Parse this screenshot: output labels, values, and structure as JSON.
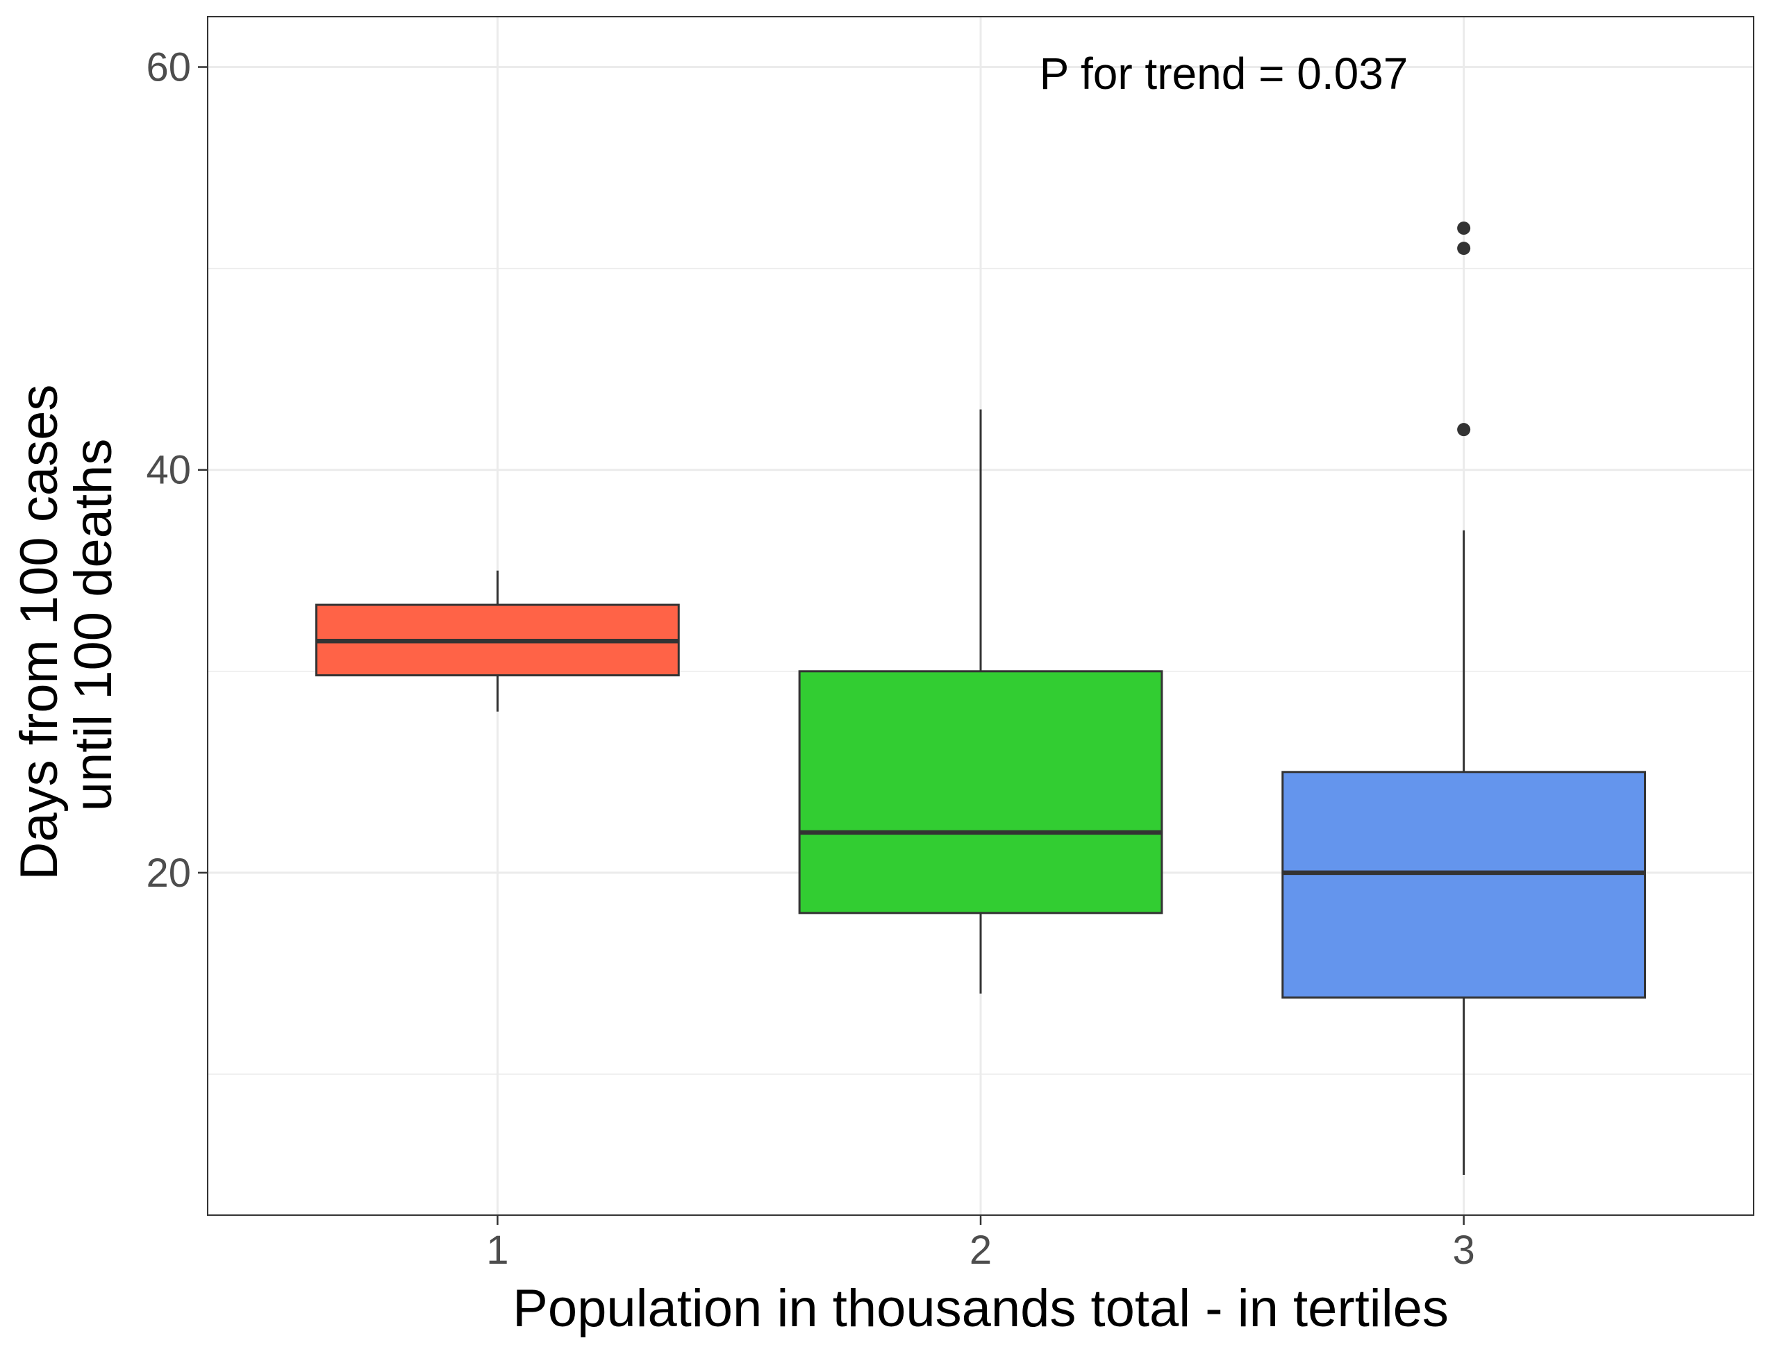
{
  "chart_data": {
    "type": "box",
    "xlabel": "Population in thousands total - in tertiles",
    "ylabel_lines": [
      "Days from 100 cases",
      "until 100 deaths"
    ],
    "annotation": "P for trend = 0.037",
    "categories": [
      "1",
      "2",
      "3"
    ],
    "ylim": [
      3,
      62.5
    ],
    "y_ticks": [
      20,
      40,
      60
    ],
    "y_minor_ticks": [
      10,
      30,
      50
    ],
    "grid": true,
    "boxes": [
      {
        "category": "1",
        "whisker_low": 28,
        "q1": 29.8,
        "median": 31.5,
        "q3": 33.3,
        "whisker_high": 35,
        "outliers": [],
        "color": "#FF6347"
      },
      {
        "category": "2",
        "whisker_low": 14,
        "q1": 18,
        "median": 22,
        "q3": 30,
        "whisker_high": 43,
        "outliers": [],
        "color": "#32CD32"
      },
      {
        "category": "3",
        "whisker_low": 5,
        "q1": 13.8,
        "median": 20,
        "q3": 25,
        "whisker_high": 37,
        "outliers": [
          42,
          51,
          52
        ],
        "color": "#6495ED"
      }
    ]
  }
}
